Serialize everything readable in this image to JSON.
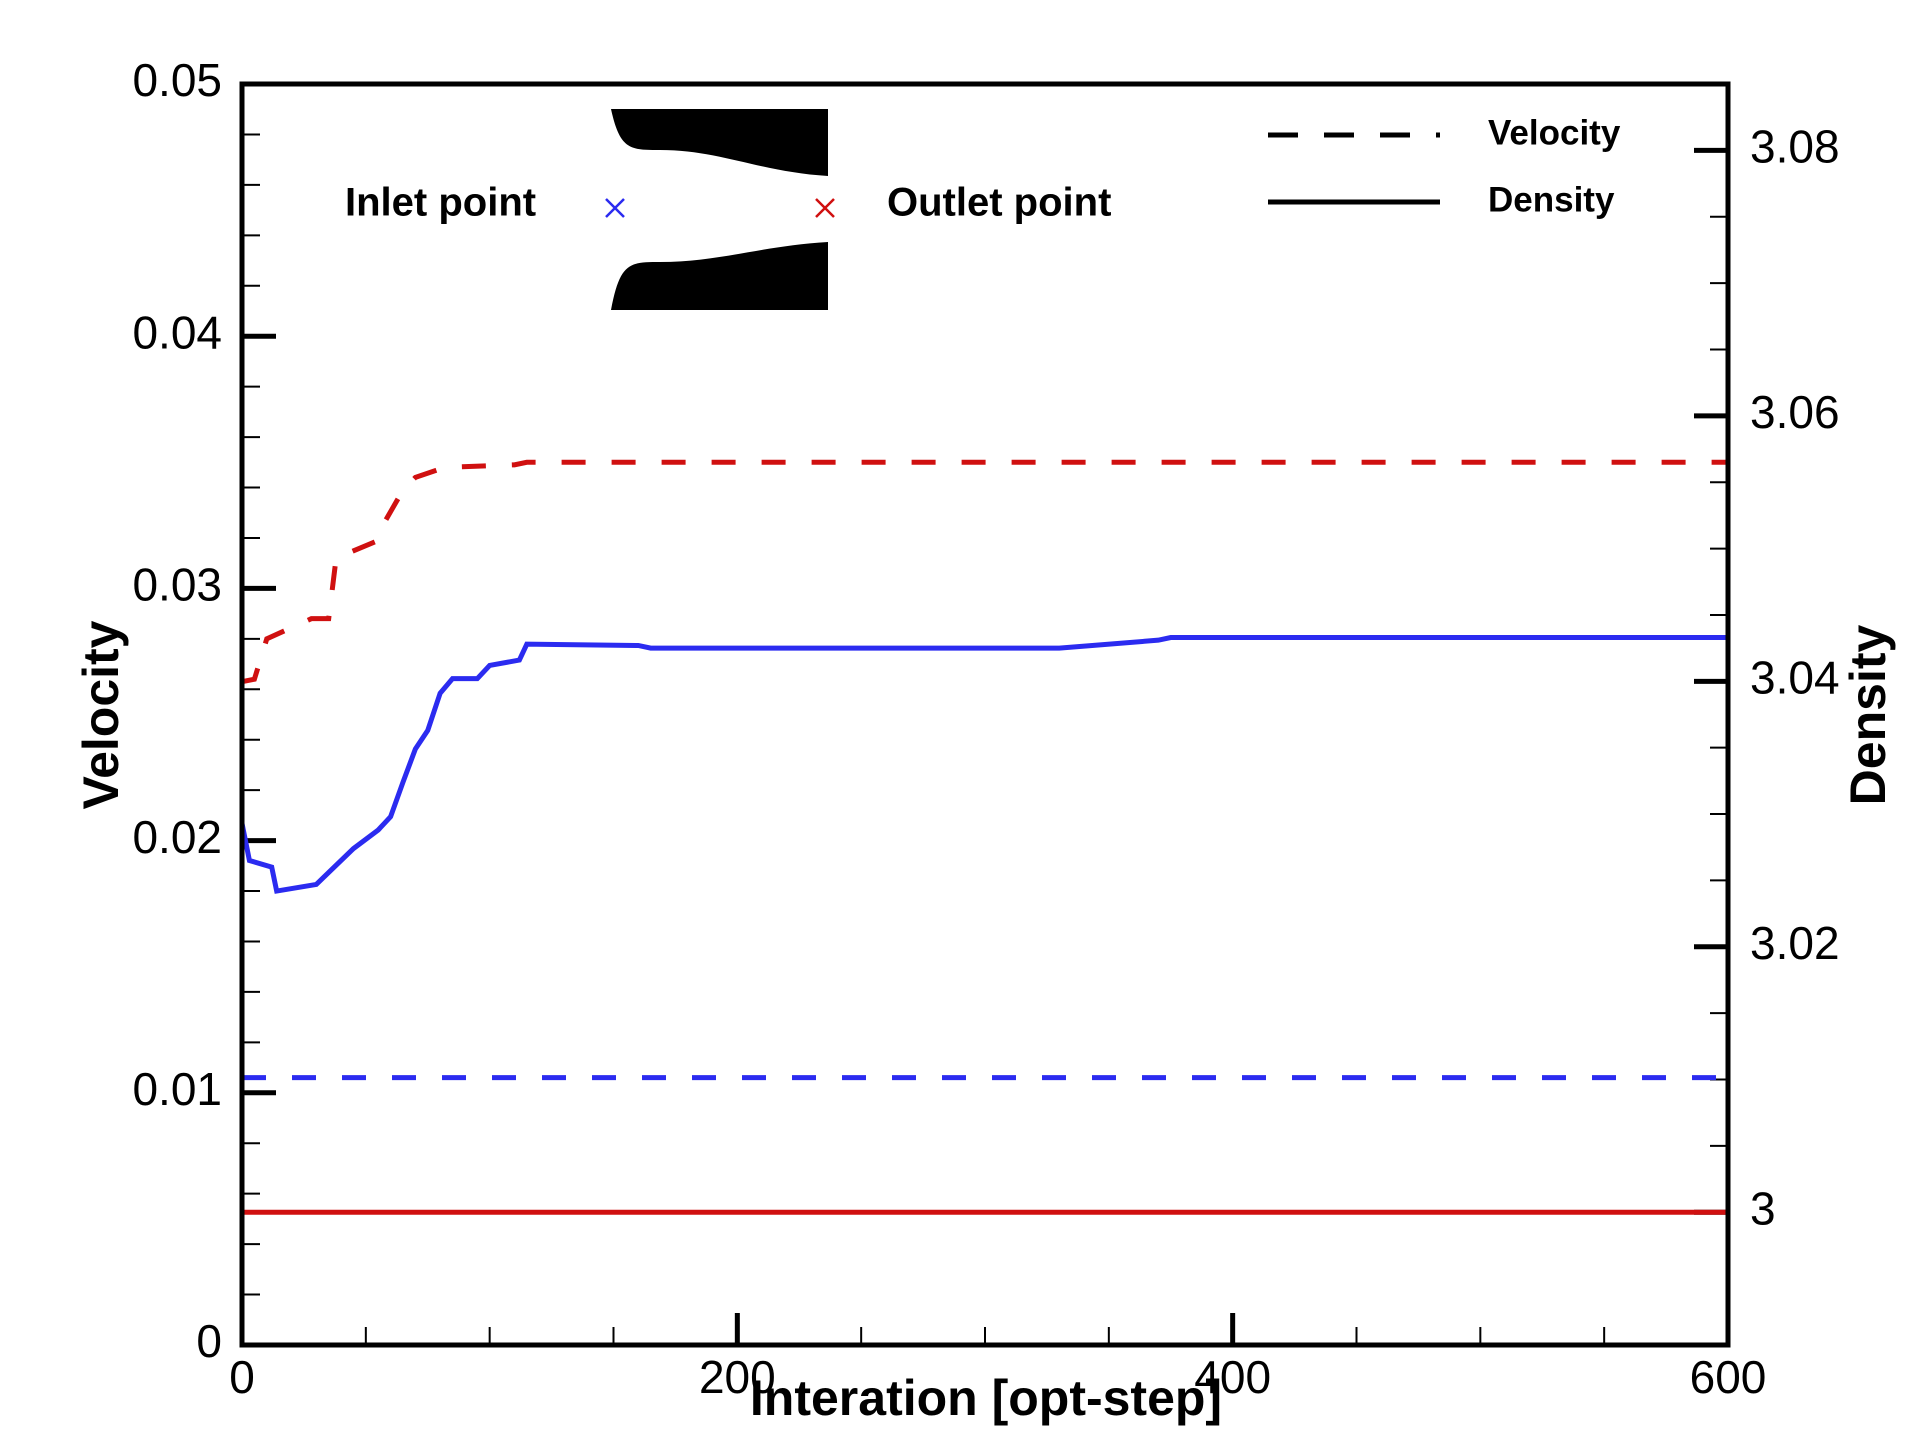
{
  "chart_data": {
    "type": "line",
    "x_label": "Interation [opt-step]",
    "y_label": "Velocity",
    "y2_label": "Density",
    "xlim": [
      0,
      600
    ],
    "xticks": [
      0,
      200,
      400,
      600
    ],
    "ylim": [
      0,
      0.05
    ],
    "yticks": [
      0,
      0.01,
      0.02,
      0.03,
      0.04,
      0.05
    ],
    "y2lim": [
      2.99,
      3.085
    ],
    "y2ticks": [
      3,
      3.02,
      3.04,
      3.06,
      3.08
    ],
    "legend": [
      {
        "label": "Velocity",
        "dashed": true
      },
      {
        "label": "Density",
        "dashed": false
      }
    ],
    "annotations": [
      {
        "text": "Inlet point",
        "color": "#2b2bf0"
      },
      {
        "text": "Outlet point",
        "color": "#d01010"
      }
    ],
    "series": [
      {
        "color": "#d01010",
        "dashed": true,
        "axis": "y",
        "x": [
          0,
          5,
          10,
          28,
          35,
          38,
          55,
          58,
          65,
          70,
          82,
          110,
          115,
          600
        ],
        "values": [
          0.0263,
          0.0264,
          0.028,
          0.0288,
          0.0288,
          0.0312,
          0.0319,
          0.0327,
          0.0339,
          0.0344,
          0.0348,
          0.0349,
          0.035,
          0.035
        ]
      },
      {
        "color": "#2b2bf0",
        "dashed": true,
        "axis": "y",
        "x": [
          0,
          600
        ],
        "values": [
          0.0106,
          0.0106
        ]
      },
      {
        "color": "#2b2bf0",
        "dashed": false,
        "axis": "y2",
        "x": [
          0,
          3,
          12,
          14,
          30,
          35,
          45,
          55,
          60,
          65,
          70,
          75,
          80,
          85,
          95,
          100,
          112,
          115,
          160,
          165,
          330,
          370,
          375,
          600
        ],
        "values": [
          3.0293,
          3.0265,
          3.026,
          3.0242,
          3.0247,
          3.0256,
          3.0274,
          3.0288,
          3.0298,
          3.0324,
          3.0349,
          3.0363,
          3.0391,
          3.0402,
          3.0402,
          3.0412,
          3.0416,
          3.0428,
          3.0427,
          3.0425,
          3.0425,
          3.0431,
          3.0433,
          3.0433
        ]
      },
      {
        "color": "#d01010",
        "dashed": false,
        "axis": "y2",
        "x": [
          0,
          600
        ],
        "values": [
          3.0,
          3.0
        ]
      }
    ]
  }
}
